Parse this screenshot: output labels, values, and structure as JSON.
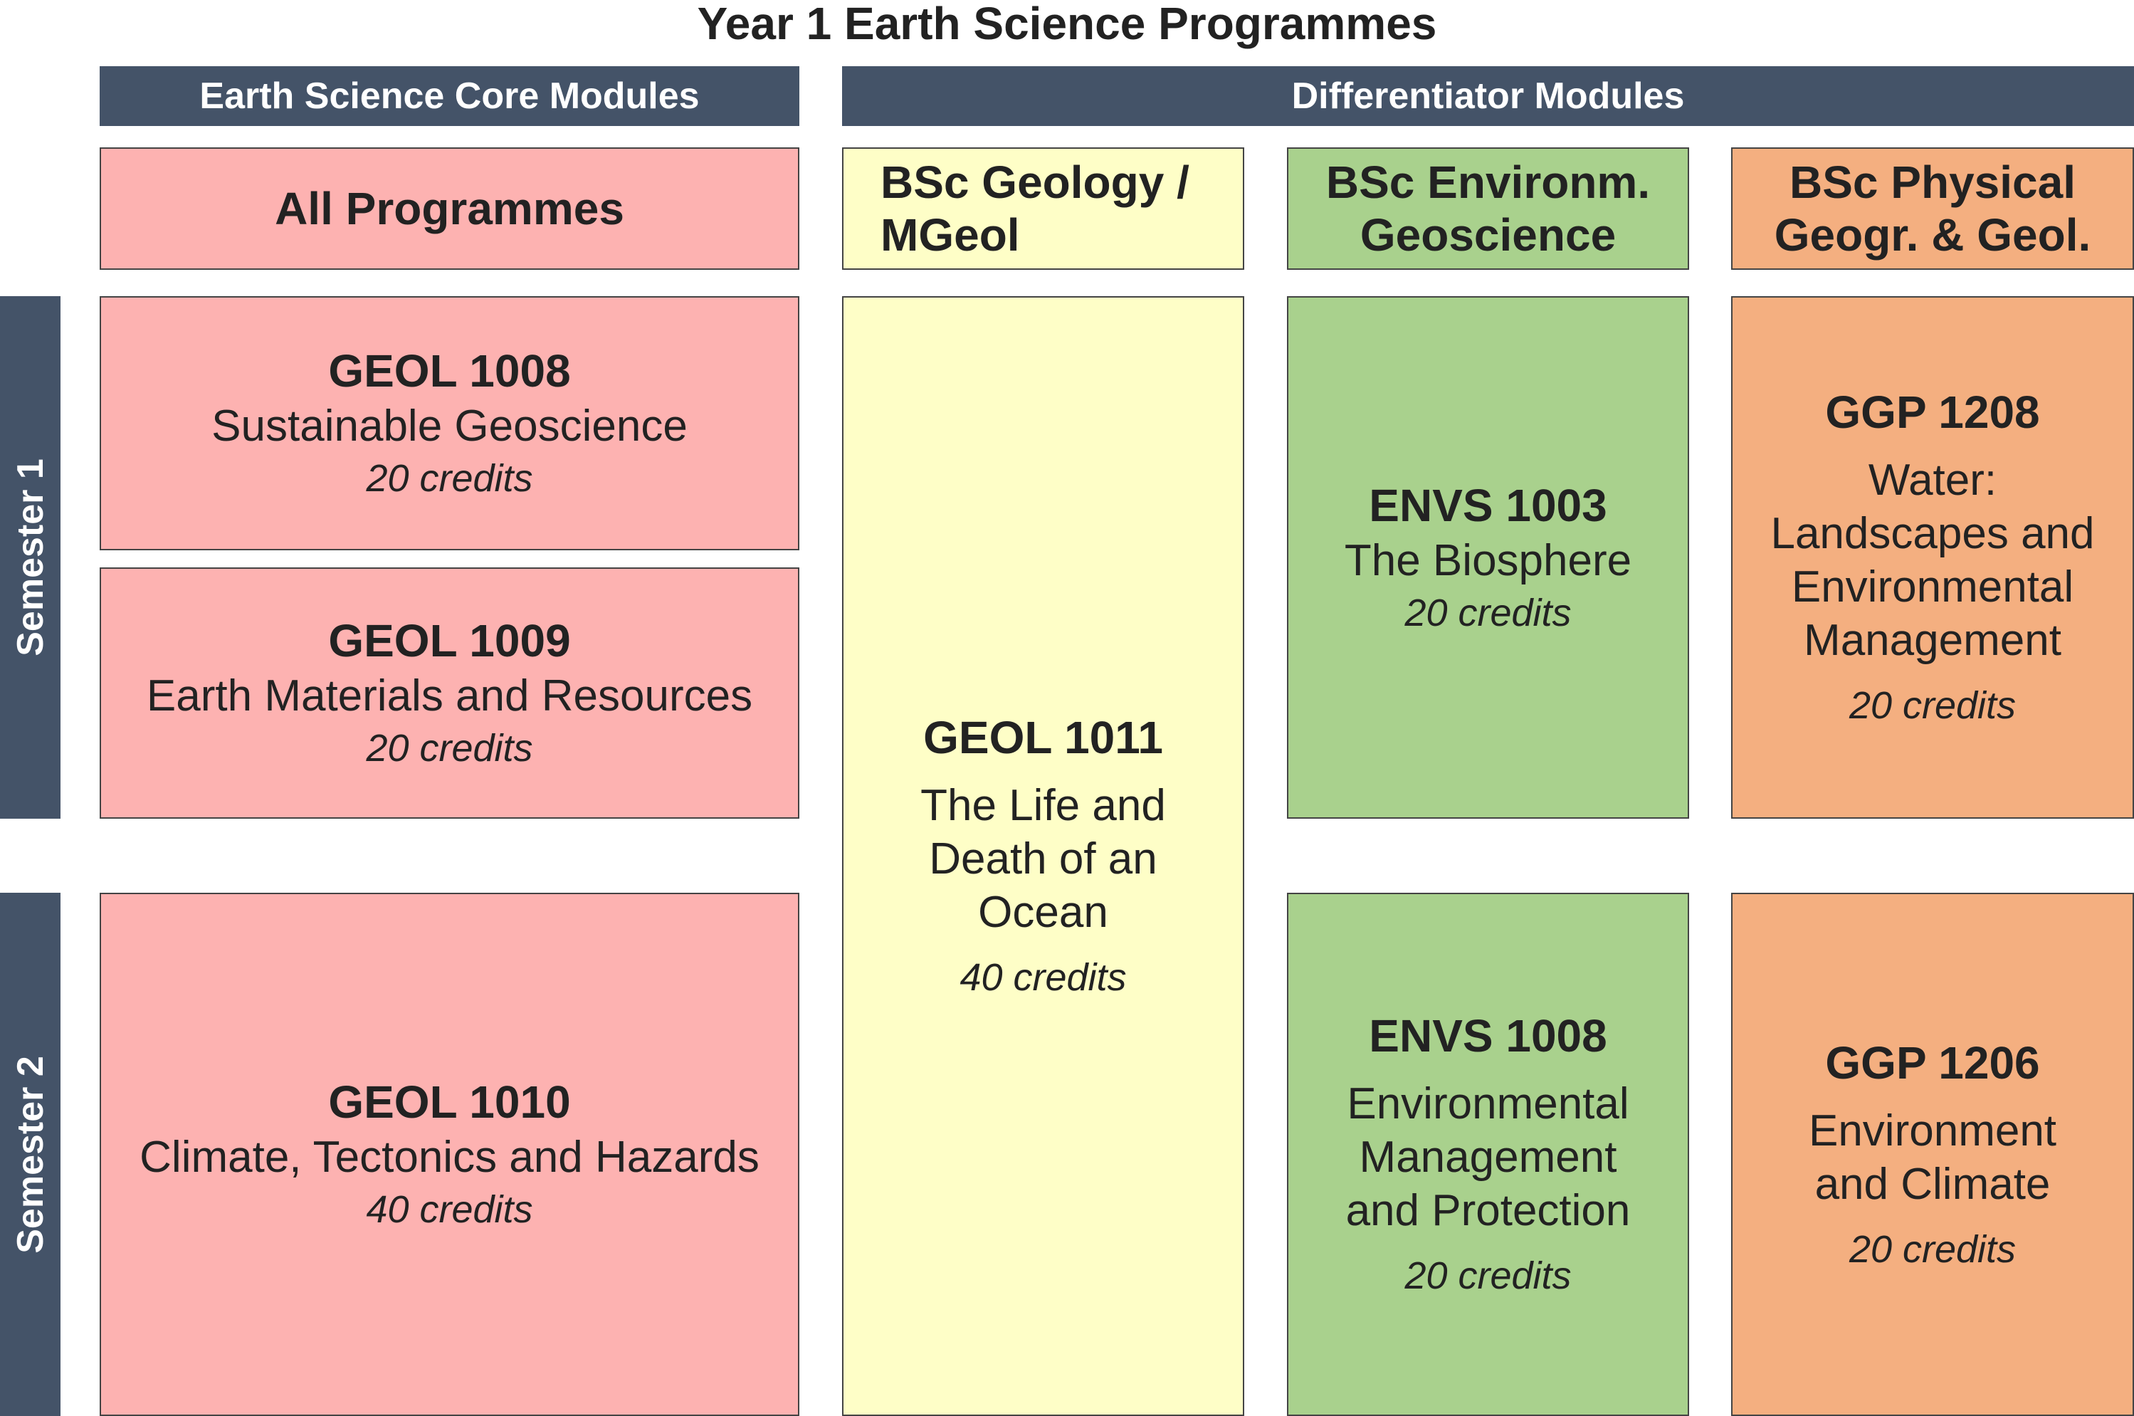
{
  "title": "Year 1 Earth Science Programmes",
  "headers": {
    "core": "Earth Science Core Modules",
    "differentiator": "Differentiator Modules"
  },
  "programmes": {
    "all": "All Programmes",
    "geology_line1": "BSc Geology /",
    "geology_line2": "MGeol",
    "env_line1": "BSc Environm.",
    "env_line2": "Geoscience",
    "phys_line1": "BSc Physical",
    "phys_line2": "Geogr. & Geol."
  },
  "semesters": {
    "s1": "Semester 1",
    "s2": "Semester 2"
  },
  "modules": {
    "geol1008": {
      "code": "GEOL 1008",
      "name": "Sustainable Geoscience",
      "credits": "20 credits"
    },
    "geol1009": {
      "code": "GEOL 1009",
      "name": "Earth Materials and Resources",
      "credits": "20 credits"
    },
    "geol1010": {
      "code": "GEOL 1010",
      "name": "Climate, Tectonics and Hazards",
      "credits": "40 credits"
    },
    "geol1011": {
      "code": "GEOL 1011",
      "name_lines": [
        "The Life and",
        "Death of an",
        "Ocean"
      ],
      "credits": "40 credits"
    },
    "envs1003": {
      "code": "ENVS 1003",
      "name": "The Biosphere",
      "credits": "20 credits"
    },
    "envs1008": {
      "code": "ENVS 1008",
      "name_lines": [
        "Environmental",
        "Management",
        "and Protection"
      ],
      "credits": "20 credits"
    },
    "ggp1208": {
      "code": "GGP 1208",
      "name_lines": [
        "Water:",
        "Landscapes and",
        "Environmental",
        "Management"
      ],
      "credits": "20 credits"
    },
    "ggp1206": {
      "code": "GGP 1206",
      "name_lines": [
        "Environment",
        "and Climate"
      ],
      "credits": "20 credits"
    }
  },
  "colors": {
    "header_bar": "#445368",
    "core": "#fdb2b1",
    "geology": "#fefec7",
    "environmental": "#a9d18d",
    "physical": "#f4af80"
  }
}
